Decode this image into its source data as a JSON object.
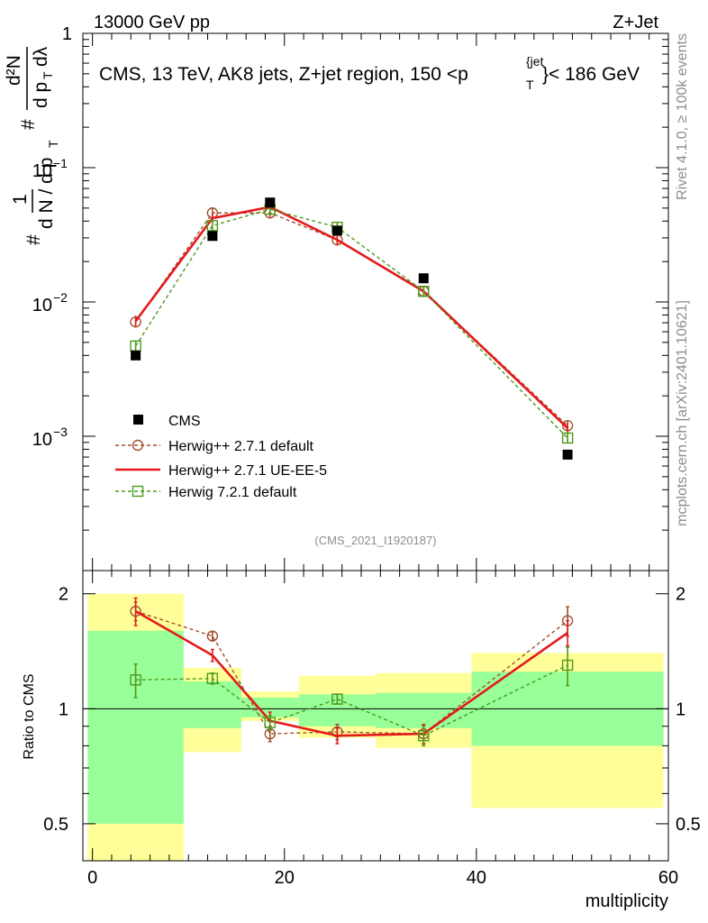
{
  "header": {
    "energy_label": "13000 GeV pp",
    "process_label": "Z+Jet"
  },
  "side_text": {
    "rivet_version": "Rivet 4.1.0, ≥ 100k events",
    "source": "mcplots.cern.ch [arXiv:2401.10621]"
  },
  "chart_data": {
    "type": "line",
    "title": "CMS, 13 TeV, AK8 jets, Z+jet region, 150 <p_T^{jet}< 186 GeV",
    "title_parts": {
      "prefix": "CMS, 13 TeV, AK8 jets, Z+jet region, 150 <p",
      "sup": "{jet",
      "sub": "T",
      "suffix": "}< 186 GeV"
    },
    "analysis_id": "(CMS_2021_I1920187)",
    "xlabel": "multiplicity",
    "ylabel_parts": {
      "hash1": "#",
      "one": "1",
      "denom_left": "d N / d p",
      "denom_sub": "T",
      "hash2": "#",
      "num": "d²N",
      "den": "d p",
      "den_sub": "T",
      "dl": "dλ"
    },
    "ratio_ylabel": "Ratio to CMS",
    "xlim": [
      -1,
      60
    ],
    "ylim": [
      0.0001,
      1
    ],
    "yscale": "log",
    "ratio_ylim": [
      0.4,
      2.3
    ],
    "x_ticks": [
      0,
      20,
      40,
      60
    ],
    "x_tick_labels": [
      "0",
      "20",
      "40",
      "60"
    ],
    "y_tick_labels": [
      {
        "base": "1",
        "exp": ""
      },
      {
        "base": "10",
        "exp": "−1"
      },
      {
        "base": "10",
        "exp": "−2"
      },
      {
        "base": "10",
        "exp": "−3"
      }
    ],
    "ratio_ticks": [
      0.5,
      1,
      2
    ],
    "ratio_tick_labels": [
      "0.5",
      "1",
      "2"
    ],
    "bins": [
      [
        -0.5,
        9.5
      ],
      [
        9.5,
        15.5
      ],
      [
        15.5,
        21.5
      ],
      [
        21.5,
        29.5
      ],
      [
        29.5,
        39.5
      ],
      [
        39.5,
        59.5
      ]
    ],
    "x": [
      4.5,
      12.5,
      18.5,
      25.5,
      34.5,
      49.5
    ],
    "data": {
      "name": "CMS",
      "values": [
        0.004,
        0.031,
        0.055,
        0.034,
        0.015,
        0.00073
      ]
    },
    "series": [
      {
        "name": "Herwig++ 2.7.1 default",
        "color": "#a0522d",
        "marker": "circle",
        "line": "dashed",
        "values": [
          0.0071,
          0.046,
          0.046,
          0.029,
          0.012,
          0.0012
        ],
        "ratio": [
          1.8,
          1.55,
          0.86,
          0.87,
          0.86,
          1.7
        ],
        "ratio_err": [
          0.1,
          0.04,
          0.04,
          0.04,
          0.05,
          0.15
        ]
      },
      {
        "name": "Herwig++ 2.7.1 UE-EE-5",
        "color": "#e41a1c",
        "marker": "none",
        "line": "solid",
        "values": [
          0.0072,
          0.042,
          0.051,
          0.029,
          0.012,
          0.00115
        ],
        "ratio": [
          1.8,
          1.38,
          0.93,
          0.85,
          0.86,
          1.58
        ],
        "ratio_err": [
          0.15,
          0.05,
          0.05,
          0.04,
          0.05,
          0.12
        ]
      },
      {
        "name": "Herwig 7.2.1 default",
        "color": "#4d9a1c",
        "marker": "square",
        "line": "dashed",
        "values": [
          0.0047,
          0.037,
          0.049,
          0.036,
          0.012,
          0.00097
        ],
        "ratio": [
          1.19,
          1.2,
          0.92,
          1.06,
          0.85,
          1.3
        ],
        "ratio_err": [
          0.12,
          0.04,
          0.04,
          0.03,
          0.05,
          0.15
        ]
      }
    ],
    "uncertainty_bands": {
      "inner_color": "#99ff99",
      "outer_color": "#ffff99",
      "inner": [
        [
          0.5,
          1.6
        ],
        [
          0.89,
          1.18
        ],
        [
          0.95,
          1.07
        ],
        [
          0.9,
          1.09
        ],
        [
          0.89,
          1.1
        ],
        [
          0.8,
          1.25
        ]
      ],
      "outer": [
        [
          0.3,
          2.0
        ],
        [
          0.77,
          1.28
        ],
        [
          0.93,
          1.11
        ],
        [
          0.84,
          1.22
        ],
        [
          0.79,
          1.24
        ],
        [
          0.55,
          1.4
        ]
      ]
    }
  }
}
